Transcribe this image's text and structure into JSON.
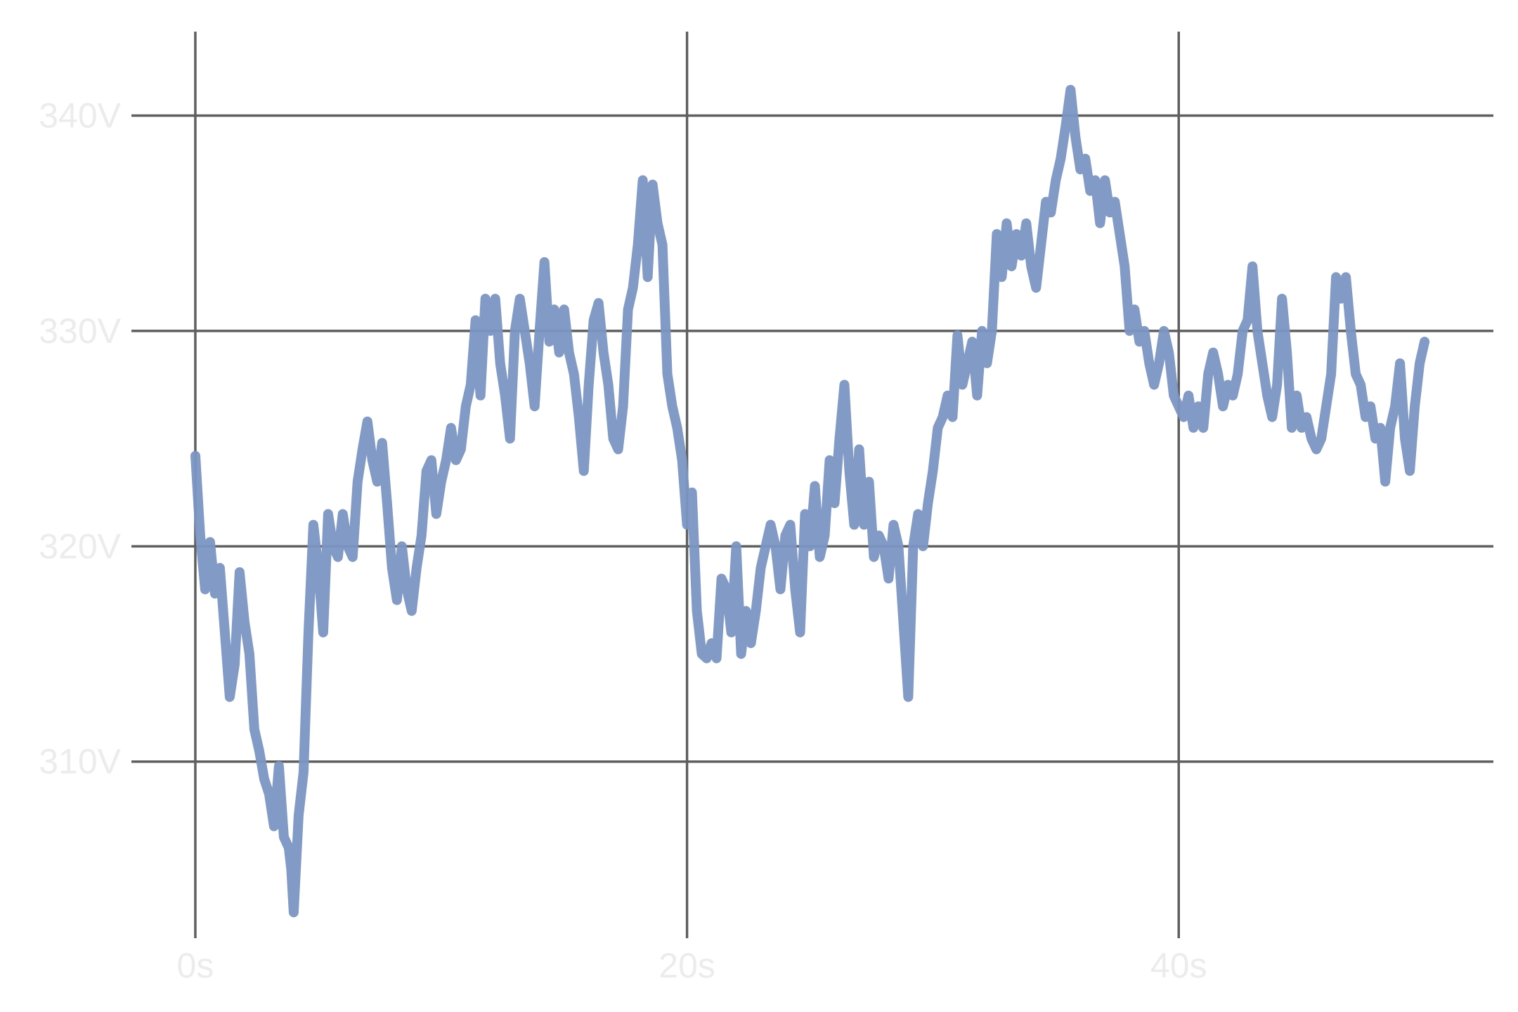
{
  "chart_data": {
    "type": "line",
    "title": "",
    "xlabel": "",
    "ylabel": "",
    "x_unit": "s",
    "y_unit": "V",
    "xlim": [
      -2.6,
      52.8
    ],
    "ylim": [
      301.8,
      343.9
    ],
    "x_ticks": [
      0,
      20,
      40
    ],
    "y_ticks": [
      310,
      320,
      330,
      340
    ],
    "x_tick_labels": [
      "0s",
      "20s",
      "40s"
    ],
    "y_tick_labels": [
      "310V",
      "320V",
      "330V",
      "340V"
    ],
    "grid": true,
    "legend": "none",
    "colors": {
      "series": "#7b95c3",
      "grid": "#5f5f5f",
      "tick_text": "#ececec",
      "background": "#ffffff"
    },
    "series": [
      {
        "x": [
          0,
          0.2,
          0.4,
          0.6,
          0.8,
          1.0,
          1.2,
          1.4,
          1.6,
          1.8,
          2.0,
          2.2,
          2.4,
          2.6,
          2.8,
          3.0,
          3.2,
          3.4,
          3.6,
          3.8,
          3.9,
          4.0,
          4.2,
          4.4,
          4.6,
          4.8,
          5.0,
          5.2,
          5.4,
          5.6,
          5.8,
          6.0,
          6.2,
          6.4,
          6.6,
          6.8,
          7.0,
          7.2,
          7.4,
          7.6,
          7.8,
          8.0,
          8.2,
          8.4,
          8.6,
          8.8,
          9.0,
          9.2,
          9.4,
          9.6,
          9.8,
          10.0,
          10.2,
          10.4,
          10.6,
          10.8,
          11.0,
          11.2,
          11.4,
          11.6,
          11.8,
          12.0,
          12.2,
          12.4,
          12.6,
          12.8,
          13.0,
          13.2,
          13.4,
          13.6,
          13.8,
          14.0,
          14.2,
          14.4,
          14.6,
          14.8,
          15.0,
          15.2,
          15.4,
          15.6,
          15.8,
          16.0,
          16.2,
          16.4,
          16.6,
          16.8,
          17.0,
          17.2,
          17.4,
          17.6,
          17.8,
          18.0,
          18.2,
          18.4,
          18.6,
          18.8,
          19.0,
          19.2,
          19.4,
          19.6,
          19.8,
          20.0,
          20.2,
          20.4,
          20.6,
          20.8,
          21.0,
          21.2,
          21.4,
          21.6,
          21.8,
          22.0,
          22.2,
          22.4,
          22.6,
          22.8,
          23.0,
          23.2,
          23.4,
          23.6,
          23.8,
          24.0,
          24.2,
          24.4,
          24.6,
          24.8,
          25.0,
          25.2,
          25.4,
          25.6,
          25.8,
          26.0,
          26.2,
          26.4,
          26.6,
          26.8,
          27.0,
          27.2,
          27.4,
          27.6,
          27.8,
          28.0,
          28.2,
          28.4,
          28.6,
          28.8,
          29.0,
          29.2,
          29.4,
          29.6,
          29.8,
          30.0,
          30.2,
          30.4,
          30.6,
          30.8,
          31.0,
          31.2,
          31.4,
          31.6,
          31.8,
          32.0,
          32.2,
          32.4,
          32.6,
          32.8,
          33.0,
          33.2,
          33.4,
          33.6,
          33.8,
          34.0,
          34.2,
          34.4,
          34.6,
          34.8,
          35.0,
          35.2,
          35.4,
          35.6,
          35.8,
          36.0,
          36.2,
          36.4,
          36.6,
          36.8,
          37.0,
          37.2,
          37.4,
          37.6,
          37.8,
          38.0,
          38.2,
          38.4,
          38.6,
          38.8,
          39.0,
          39.2,
          39.4,
          39.6,
          39.8,
          40.0,
          40.2,
          40.4,
          40.6,
          40.8,
          41.0,
          41.2,
          41.4,
          41.6,
          41.8,
          42.0,
          42.2,
          42.4,
          42.6,
          42.8,
          43.0,
          43.2,
          43.4,
          43.6,
          43.8,
          44.0,
          44.2,
          44.4,
          44.6,
          44.8,
          45.0,
          45.2,
          45.4,
          45.6,
          45.8,
          46.0,
          46.2,
          46.4,
          46.6,
          46.8,
          47.0,
          47.2,
          47.4,
          47.6,
          47.8,
          48.0,
          48.2,
          48.4,
          48.6,
          48.8,
          49.0,
          49.2,
          49.4,
          49.6,
          49.8,
          50.0
        ],
        "y": [
          324.2,
          320.5,
          318.0,
          320.2,
          317.8,
          319.0,
          316.0,
          313.0,
          314.5,
          318.8,
          316.5,
          315.0,
          311.5,
          310.5,
          309.2,
          308.5,
          307.0,
          309.8,
          306.5,
          306.0,
          305.0,
          303.0,
          307.5,
          309.5,
          316.0,
          321.0,
          319.0,
          316.0,
          321.5,
          320.0,
          319.5,
          321.5,
          320.0,
          319.5,
          323.0,
          324.5,
          325.8,
          324.0,
          323.0,
          324.8,
          322.0,
          319.0,
          317.5,
          320.0,
          318.0,
          317.0,
          319.0,
          320.5,
          323.5,
          324.0,
          321.5,
          323.0,
          324.0,
          325.5,
          324.0,
          324.5,
          326.5,
          327.5,
          330.5,
          327.0,
          331.5,
          330.0,
          331.5,
          328.5,
          327.0,
          325.0,
          330.0,
          331.5,
          330.0,
          328.5,
          326.5,
          330.0,
          333.2,
          329.5,
          331.0,
          329.0,
          331.0,
          329.0,
          328.0,
          326.0,
          323.5,
          327.5,
          330.5,
          331.3,
          329.0,
          327.5,
          325.0,
          324.5,
          326.5,
          331.0,
          332.0,
          334.0,
          337.0,
          332.5,
          336.8,
          335.0,
          334.0,
          328.0,
          326.5,
          325.5,
          324.0,
          321.0,
          322.5,
          317.0,
          315.0,
          314.8,
          315.5,
          314.8,
          318.5,
          318.0,
          316.0,
          320.0,
          315.0,
          317.0,
          315.5,
          317.0,
          319.0,
          320.0,
          321.0,
          320.0,
          318.0,
          320.5,
          321.0,
          318.0,
          316.0,
          321.5,
          320.0,
          322.8,
          319.5,
          320.5,
          324.0,
          322.0,
          325.0,
          327.5,
          323.5,
          321.0,
          324.5,
          321.0,
          323.0,
          319.5,
          320.5,
          320.0,
          318.5,
          321.0,
          320.0,
          316.5,
          313.0,
          320.0,
          321.5,
          320.0,
          322.0,
          323.5,
          325.5,
          326.0,
          327.0,
          326.0,
          329.8,
          327.5,
          328.5,
          329.5,
          327.0,
          330.0,
          328.5,
          330.0,
          334.5,
          332.5,
          335.0,
          333.0,
          334.5,
          333.5,
          335.0,
          333.0,
          332.0,
          334.0,
          336.0,
          335.5,
          337.0,
          338.0,
          339.5,
          341.2,
          339.0,
          337.5,
          338.0,
          336.5,
          337.0,
          335.0,
          337.0,
          335.5,
          336.0,
          334.5,
          333.0,
          330.0,
          331.0,
          329.5,
          330.0,
          328.5,
          327.5,
          328.5,
          330.0,
          329.0,
          327.0,
          326.5,
          326.0,
          327.0,
          325.5,
          326.5,
          325.5,
          328.0,
          329.0,
          328.0,
          326.5,
          327.5,
          327.0,
          328.0,
          330.0,
          330.5,
          333.0,
          330.0,
          328.5,
          327.0,
          326.0,
          327.5,
          331.5,
          329.0,
          325.5,
          327.0,
          325.5,
          326.0,
          325.0,
          324.5,
          325.0,
          326.5,
          328.0,
          332.5,
          331.5,
          332.5,
          330.0,
          328.0,
          327.5,
          326.0,
          326.5,
          325.0,
          325.5,
          323.0,
          325.5,
          326.5,
          328.5,
          325.0,
          323.5,
          326.5,
          328.5,
          329.5
        ]
      }
    ]
  }
}
